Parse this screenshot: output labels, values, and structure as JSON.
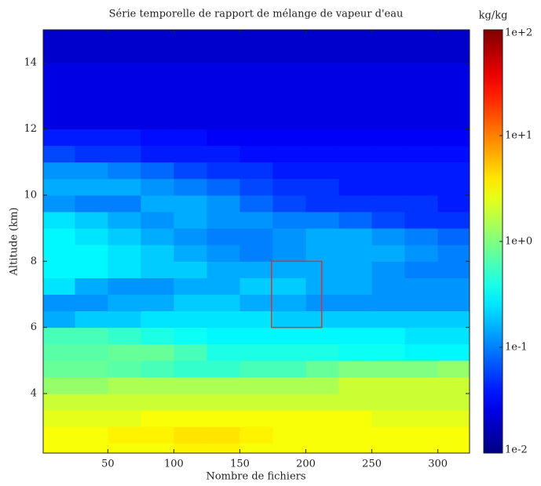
{
  "chart_data": {
    "type": "heatmap",
    "title": "Série temporelle de rapport de mélange de vapeur d'eau",
    "xlabel": "Nombre de fichiers",
    "ylabel": "Altitude (km)",
    "colorbar_label": "kg/kg",
    "xlim": [
      1,
      324
    ],
    "ylim": [
      2.2,
      15
    ],
    "xticks": [
      50,
      100,
      150,
      200,
      250,
      300
    ],
    "yticks": [
      4,
      6,
      8,
      10,
      12,
      14
    ],
    "log_color_scale": true,
    "colormap": "jet",
    "clim": [
      0.01,
      100
    ],
    "cticks": [
      {
        "value": 0.01,
        "label": "1e-2"
      },
      {
        "value": 0.1,
        "label": "1e-1"
      },
      {
        "value": 1,
        "label": "1e+0"
      },
      {
        "value": 10,
        "label": "1e+1"
      },
      {
        "value": 100,
        "label": "1e+2"
      }
    ],
    "xbins": [
      1,
      25,
      50,
      75,
      100,
      125,
      150,
      175,
      200,
      225,
      250,
      275,
      300,
      324
    ],
    "ybins": [
      2.2,
      2.5,
      3,
      3.5,
      4,
      4.5,
      5,
      5.5,
      6,
      6.5,
      7,
      7.5,
      8,
      8.5,
      9,
      9.5,
      10,
      10.5,
      11,
      11.5,
      12,
      12.5,
      13,
      13.5,
      14,
      14.5,
      15
    ],
    "z": [
      [
        3,
        3,
        3,
        3,
        3.5,
        3.5,
        3,
        3,
        3,
        3,
        3,
        3,
        3
      ],
      [
        3,
        3,
        3.5,
        3.5,
        4,
        4,
        3.5,
        3,
        3,
        3,
        3,
        3,
        3
      ],
      [
        2.5,
        2.5,
        2.5,
        3,
        3,
        3,
        3,
        3,
        3,
        3,
        2.5,
        2.5,
        2.5
      ],
      [
        2,
        2,
        2,
        2,
        2,
        2,
        2,
        2,
        2,
        2,
        2,
        2,
        2
      ],
      [
        1.2,
        1.2,
        1.5,
        1.5,
        1.5,
        1.5,
        1.5,
        1.5,
        1.5,
        2,
        2,
        2,
        2
      ],
      [
        0.8,
        0.8,
        0.7,
        0.6,
        0.5,
        0.5,
        0.6,
        0.6,
        0.8,
        1,
        1,
        1,
        1.2
      ],
      [
        0.7,
        0.7,
        0.8,
        0.8,
        0.6,
        0.4,
        0.4,
        0.4,
        0.4,
        0.35,
        0.35,
        0.3,
        0.3
      ],
      [
        0.6,
        0.6,
        0.5,
        0.4,
        0.35,
        0.3,
        0.3,
        0.3,
        0.3,
        0.3,
        0.3,
        0.25,
        0.25
      ],
      [
        0.15,
        0.2,
        0.2,
        0.25,
        0.25,
        0.25,
        0.25,
        0.2,
        0.2,
        0.2,
        0.2,
        0.2,
        0.2
      ],
      [
        0.12,
        0.12,
        0.15,
        0.15,
        0.2,
        0.2,
        0.15,
        0.15,
        0.12,
        0.12,
        0.12,
        0.12,
        0.12
      ],
      [
        0.25,
        0.15,
        0.12,
        0.12,
        0.15,
        0.15,
        0.2,
        0.2,
        0.15,
        0.15,
        0.12,
        0.12,
        0.12
      ],
      [
        0.3,
        0.3,
        0.25,
        0.2,
        0.2,
        0.15,
        0.15,
        0.15,
        0.15,
        0.15,
        0.12,
        0.1,
        0.1
      ],
      [
        0.3,
        0.3,
        0.25,
        0.2,
        0.15,
        0.12,
        0.1,
        0.12,
        0.15,
        0.15,
        0.15,
        0.12,
        0.1
      ],
      [
        0.3,
        0.25,
        0.2,
        0.15,
        0.12,
        0.1,
        0.1,
        0.12,
        0.15,
        0.15,
        0.12,
        0.1,
        0.08
      ],
      [
        0.25,
        0.2,
        0.15,
        0.12,
        0.15,
        0.12,
        0.12,
        0.1,
        0.1,
        0.08,
        0.06,
        0.05,
        0.05
      ],
      [
        0.12,
        0.1,
        0.1,
        0.15,
        0.15,
        0.12,
        0.08,
        0.06,
        0.05,
        0.05,
        0.05,
        0.05,
        0.04
      ],
      [
        0.15,
        0.15,
        0.15,
        0.12,
        0.1,
        0.08,
        0.06,
        0.05,
        0.05,
        0.04,
        0.04,
        0.04,
        0.04
      ],
      [
        0.12,
        0.12,
        0.1,
        0.08,
        0.06,
        0.05,
        0.05,
        0.04,
        0.04,
        0.04,
        0.04,
        0.04,
        0.04
      ],
      [
        0.06,
        0.05,
        0.05,
        0.04,
        0.04,
        0.04,
        0.035,
        0.035,
        0.035,
        0.035,
        0.035,
        0.035,
        0.035
      ],
      [
        0.04,
        0.04,
        0.04,
        0.035,
        0.035,
        0.03,
        0.03,
        0.03,
        0.03,
        0.03,
        0.03,
        0.03,
        0.03
      ],
      [
        0.025,
        0.025,
        0.025,
        0.025,
        0.025,
        0.025,
        0.025,
        0.025,
        0.025,
        0.025,
        0.025,
        0.025,
        0.025
      ],
      [
        0.025,
        0.025,
        0.025,
        0.025,
        0.025,
        0.025,
        0.025,
        0.025,
        0.025,
        0.025,
        0.025,
        0.025,
        0.025
      ],
      [
        0.025,
        0.025,
        0.025,
        0.025,
        0.025,
        0.025,
        0.025,
        0.025,
        0.025,
        0.025,
        0.025,
        0.025,
        0.025
      ],
      [
        0.025,
        0.025,
        0.025,
        0.025,
        0.025,
        0.025,
        0.025,
        0.025,
        0.025,
        0.025,
        0.025,
        0.025,
        0.025
      ],
      [
        0.02,
        0.02,
        0.02,
        0.02,
        0.02,
        0.02,
        0.02,
        0.02,
        0.02,
        0.02,
        0.02,
        0.02,
        0.02
      ],
      [
        0.02,
        0.02,
        0.02,
        0.02,
        0.02,
        0.02,
        0.02,
        0.02,
        0.02,
        0.02,
        0.02,
        0.02,
        0.02
      ]
    ],
    "annotation_box": {
      "x": [
        174,
        212
      ],
      "y": [
        6,
        8
      ],
      "color": "#e03030"
    }
  }
}
